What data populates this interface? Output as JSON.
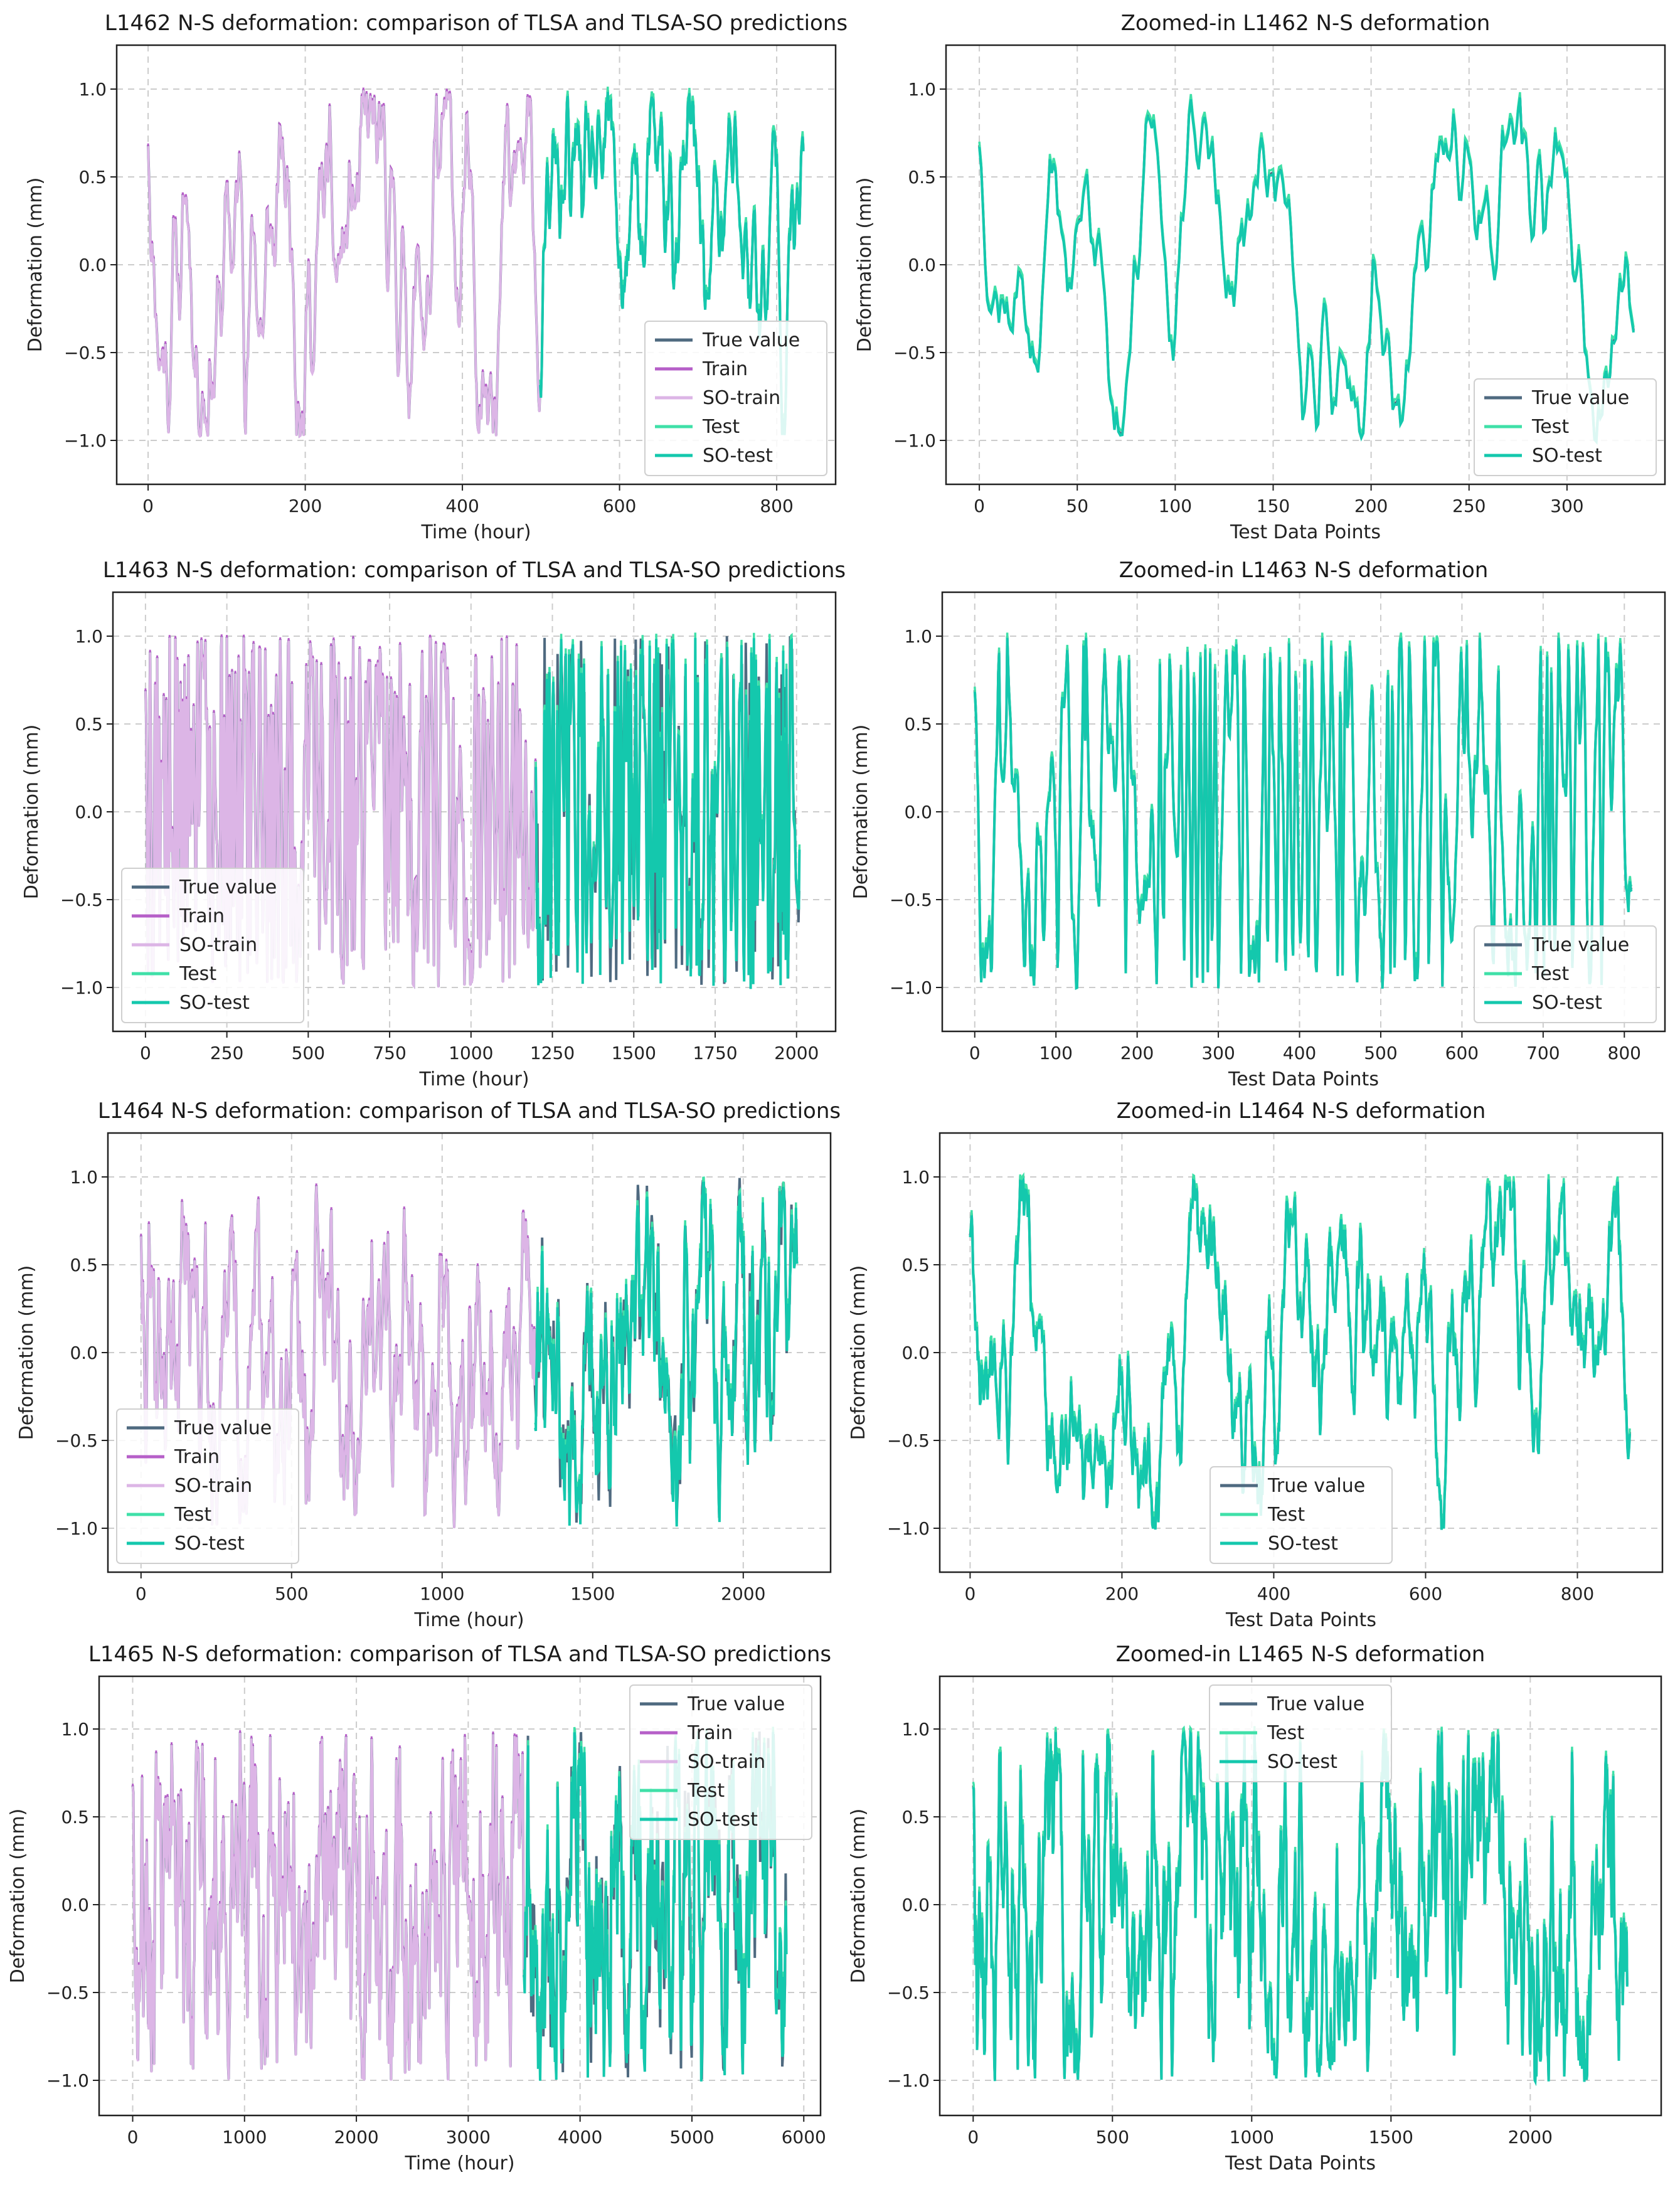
{
  "chart_data": [
    {
      "type": "line",
      "title": "L1462 N-S deformation: comparison of TLSA and TLSA-SO predictions",
      "xlabel": "Time (hour)",
      "ylabel": "Deformation (mm)",
      "xlim": [
        -40,
        875
      ],
      "ylim": [
        -1.25,
        1.25
      ],
      "xticks": [
        0,
        200,
        400,
        600,
        800
      ],
      "yticks": [
        -1.0,
        -0.5,
        0.0,
        0.5,
        1.0
      ],
      "split": 500,
      "n": 835,
      "seed": 11,
      "smooth": 0.55,
      "mean_revert": 0.01,
      "legend_pos": "lower-right",
      "series": [
        {
          "name": "True value",
          "key": "true",
          "color": "#4f6a80"
        },
        {
          "name": "Train",
          "key": "train",
          "color": "#b65fc8"
        },
        {
          "name": "SO-train",
          "key": "sotrain",
          "color": "#dcb5e6"
        },
        {
          "name": "Test",
          "key": "test",
          "color": "#3fe0a8"
        },
        {
          "name": "SO-test",
          "key": "sotest",
          "color": "#14c8ad"
        }
      ]
    },
    {
      "type": "line",
      "title": "Zoomed-in L1462 N-S deformation",
      "xlabel": "Test Data Points",
      "ylabel": "Deformation (mm)",
      "xlim": [
        -17,
        350
      ],
      "ylim": [
        -1.25,
        1.25
      ],
      "xticks": [
        0,
        50,
        100,
        150,
        200,
        250,
        300
      ],
      "yticks": [
        -1.0,
        -0.5,
        0.0,
        0.5,
        1.0
      ],
      "split": 0,
      "n": 335,
      "seed": 12,
      "smooth": 0.5,
      "mean_revert": 0.01,
      "legend_pos": "lower-right",
      "series": [
        {
          "name": "True value",
          "key": "true",
          "color": "#4f6a80"
        },
        {
          "name": "Test",
          "key": "test",
          "color": "#3fe0a8"
        },
        {
          "name": "SO-test",
          "key": "sotest",
          "color": "#14c8ad"
        }
      ]
    },
    {
      "type": "line",
      "title": "L1463 N-S deformation: comparison of TLSA and TLSA-SO predictions",
      "xlabel": "Time (hour)",
      "ylabel": "Deformation (mm)",
      "xlim": [
        -100,
        2120
      ],
      "ylim": [
        -1.25,
        1.25
      ],
      "xticks": [
        0,
        250,
        500,
        750,
        1000,
        1250,
        1500,
        1750,
        2000
      ],
      "yticks": [
        -1.0,
        -0.5,
        0.0,
        0.5,
        1.0
      ],
      "split": 1200,
      "n": 2010,
      "seed": 13,
      "smooth": 0.93,
      "mean_revert": 0.002,
      "legend_pos": "lower-left",
      "series": [
        {
          "name": "True value",
          "key": "true",
          "color": "#4f6a80"
        },
        {
          "name": "Train",
          "key": "train",
          "color": "#b65fc8"
        },
        {
          "name": "SO-train",
          "key": "sotrain",
          "color": "#dcb5e6"
        },
        {
          "name": "Test",
          "key": "test",
          "color": "#3fe0a8"
        },
        {
          "name": "SO-test",
          "key": "sotest",
          "color": "#14c8ad"
        }
      ]
    },
    {
      "type": "line",
      "title": "Zoomed-in L1463 N-S deformation",
      "xlabel": "Test Data Points",
      "ylabel": "Deformation (mm)",
      "xlim": [
        -40,
        850
      ],
      "ylim": [
        -1.25,
        1.25
      ],
      "xticks": [
        0,
        100,
        200,
        300,
        400,
        500,
        600,
        700,
        800
      ],
      "yticks": [
        -1.0,
        -0.5,
        0.0,
        0.5,
        1.0
      ],
      "split": 0,
      "n": 810,
      "seed": 14,
      "smooth": 0.93,
      "mean_revert": 0.002,
      "legend_pos": "lower-right",
      "series": [
        {
          "name": "True value",
          "key": "true",
          "color": "#4f6a80"
        },
        {
          "name": "Test",
          "key": "test",
          "color": "#3fe0a8"
        },
        {
          "name": "SO-test",
          "key": "sotest",
          "color": "#14c8ad"
        }
      ]
    },
    {
      "type": "line",
      "title": "L1464 N-S deformation: comparison of TLSA and TLSA-SO predictions",
      "xlabel": "Time (hour)",
      "ylabel": "Deformation (mm)",
      "xlim": [
        -110,
        2290
      ],
      "ylim": [
        -1.25,
        1.25
      ],
      "xticks": [
        0,
        500,
        1000,
        1500,
        2000
      ],
      "yticks": [
        -1.0,
        -0.5,
        0.0,
        0.5,
        1.0
      ],
      "split": 1310,
      "n": 2180,
      "seed": 15,
      "smooth": 0.3,
      "mean_revert": 0.02,
      "legend_pos": "lower-left",
      "series": [
        {
          "name": "True value",
          "key": "true",
          "color": "#4f6a80"
        },
        {
          "name": "Train",
          "key": "train",
          "color": "#b65fc8"
        },
        {
          "name": "SO-train",
          "key": "sotrain",
          "color": "#dcb5e6"
        },
        {
          "name": "Test",
          "key": "test",
          "color": "#3fe0a8"
        },
        {
          "name": "SO-test",
          "key": "sotest",
          "color": "#14c8ad"
        }
      ]
    },
    {
      "type": "line",
      "title": "Zoomed-in L1464 N-S deformation",
      "xlabel": "Test Data Points",
      "ylabel": "Deformation (mm)",
      "xlim": [
        -40,
        912
      ],
      "ylim": [
        -1.25,
        1.25
      ],
      "xticks": [
        0,
        200,
        400,
        600,
        800
      ],
      "yticks": [
        -1.0,
        -0.5,
        0.0,
        0.5,
        1.0
      ],
      "split": 0,
      "n": 870,
      "seed": 16,
      "smooth": 0.3,
      "mean_revert": 0.02,
      "legend_pos": "lower-center",
      "series": [
        {
          "name": "True value",
          "key": "true",
          "color": "#4f6a80"
        },
        {
          "name": "Test",
          "key": "test",
          "color": "#3fe0a8"
        },
        {
          "name": "SO-test",
          "key": "sotest",
          "color": "#14c8ad"
        }
      ]
    },
    {
      "type": "line",
      "title": "L1465 N-S deformation: comparison of TLSA and TLSA-SO predictions",
      "xlabel": "Time (hour)",
      "ylabel": "Deformation (mm)",
      "xlim": [
        -300,
        6150
      ],
      "ylim": [
        -1.2,
        1.3
      ],
      "xticks": [
        0,
        1000,
        2000,
        3000,
        4000,
        5000,
        6000
      ],
      "yticks": [
        -1.0,
        -0.5,
        0.0,
        0.5,
        1.0
      ],
      "split": 3500,
      "n": 5850,
      "seed": 17,
      "smooth": 0.4,
      "mean_revert": 0.012,
      "legend_pos": "upper-right",
      "series": [
        {
          "name": "True value",
          "key": "true",
          "color": "#4f6a80"
        },
        {
          "name": "Train",
          "key": "train",
          "color": "#b65fc8"
        },
        {
          "name": "SO-train",
          "key": "sotrain",
          "color": "#dcb5e6"
        },
        {
          "name": "Test",
          "key": "test",
          "color": "#3fe0a8"
        },
        {
          "name": "SO-test",
          "key": "sotest",
          "color": "#14c8ad"
        }
      ]
    },
    {
      "type": "line",
      "title": "Zoomed-in L1465 N-S deformation",
      "xlabel": "Test Data Points",
      "ylabel": "Deformation (mm)",
      "xlim": [
        -120,
        2470
      ],
      "ylim": [
        -1.2,
        1.3
      ],
      "xticks": [
        0,
        500,
        1000,
        1500,
        2000
      ],
      "yticks": [
        -1.0,
        -0.5,
        0.0,
        0.5,
        1.0
      ],
      "split": 0,
      "n": 2350,
      "seed": 18,
      "smooth": 0.4,
      "mean_revert": 0.012,
      "legend_pos": "upper-center",
      "series": [
        {
          "name": "True value",
          "key": "true",
          "color": "#4f6a80"
        },
        {
          "name": "Test",
          "key": "test",
          "color": "#3fe0a8"
        },
        {
          "name": "SO-test",
          "key": "sotest",
          "color": "#14c8ad"
        }
      ]
    }
  ]
}
